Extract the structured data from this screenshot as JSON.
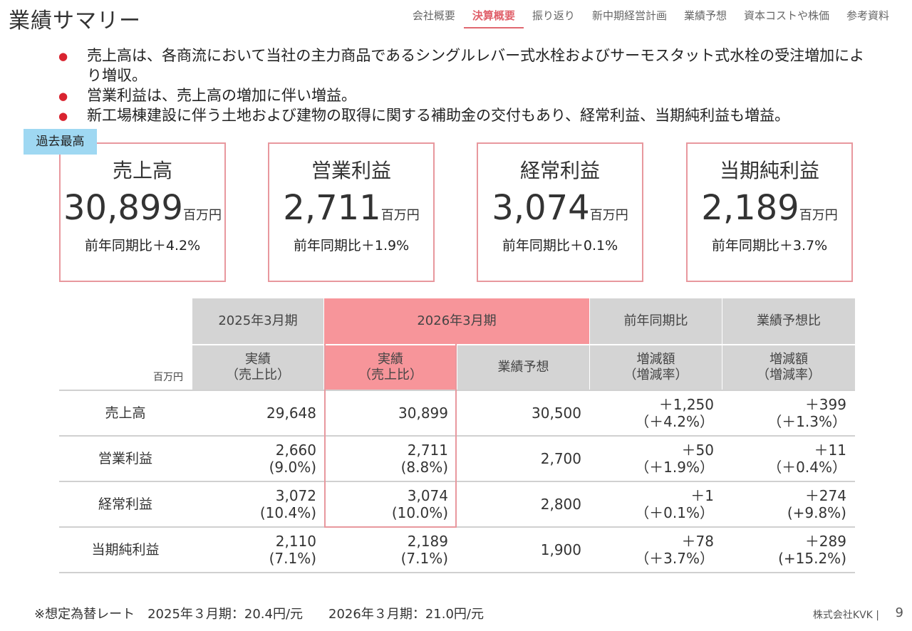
{
  "page": {
    "title": "業績サマリー"
  },
  "nav": {
    "tabs": [
      {
        "label": "会社概要"
      },
      {
        "label": "決算概要",
        "active": true
      },
      {
        "label": "振り返り"
      },
      {
        "label": "新中期経営計画"
      },
      {
        "label": "業績予想"
      },
      {
        "label": "資本コストや株価"
      },
      {
        "label": "参考資料"
      }
    ]
  },
  "bullets": [
    "売上高は、各商流において当社の主力商品であるシングルレバー式水栓およびサーモスタット式水栓の受注増加により増収。",
    "営業利益は、売上高の増加に伴い増益。",
    "新工場棟建設に伴う土地および建物の取得に関する補助金の交付もあり、経常利益、当期純利益も増益。"
  ],
  "record_tag": "過去最高",
  "cards": [
    {
      "label": "売上高",
      "value": "30,899",
      "unit": "百万円",
      "yoy": "前年同期比＋4.2%"
    },
    {
      "label": "営業利益",
      "value": "2,711",
      "unit": "百万円",
      "yoy": "前年同期比＋1.9%"
    },
    {
      "label": "経常利益",
      "value": "3,074",
      "unit": "百万円",
      "yoy": "前年同期比＋0.1%"
    },
    {
      "label": "当期純利益",
      "value": "2,189",
      "unit": "百万円",
      "yoy": "前年同期比＋3.7%"
    }
  ],
  "table": {
    "unit": "百万円",
    "group_headers": {
      "fy2025": "2025年3月期",
      "fy2026": "2026年3月期",
      "yoy": "前年同期比",
      "vs_forecast": "業績予想比"
    },
    "sub_headers": {
      "actual_2025": [
        "実績",
        "（売上比）"
      ],
      "actual_2026": [
        "実績",
        "（売上比）"
      ],
      "forecast": "業績予想",
      "yoy_change": [
        "増減額",
        "（増減率）"
      ],
      "fc_change": [
        "増減額",
        "（増減率）"
      ]
    },
    "rows": [
      {
        "label": "売上高",
        "fy2025": [
          "29,648",
          ""
        ],
        "fy2026": [
          "30,899",
          ""
        ],
        "forecast": "30,500",
        "yoy": [
          "＋1,250",
          "（＋4.2%）"
        ],
        "vs_fc": [
          "＋399",
          "（＋1.3%）"
        ]
      },
      {
        "label": "営業利益",
        "fy2025": [
          "2,660",
          "(9.0%)"
        ],
        "fy2026": [
          "2,711",
          "(8.8%)"
        ],
        "forecast": "2,700",
        "yoy": [
          "＋50",
          "（＋1.9%）"
        ],
        "vs_fc": [
          "＋11",
          "（＋0.4%）"
        ]
      },
      {
        "label": "経常利益",
        "fy2025": [
          "3,072",
          "(10.4%)"
        ],
        "fy2026": [
          "3,074",
          "(10.0%)"
        ],
        "forecast": "2,800",
        "yoy": [
          "＋1",
          "（＋0.1%）"
        ],
        "vs_fc": [
          "＋274",
          "(+9.8%)"
        ]
      },
      {
        "label": "当期純利益",
        "fy2025": [
          "2,110",
          "(7.1%)"
        ],
        "fy2026": [
          "2,189",
          "(7.1%)"
        ],
        "forecast": "1,900",
        "yoy": [
          "＋78",
          "（＋3.7%）"
        ],
        "vs_fc": [
          "＋289",
          "(+15.2%)"
        ]
      }
    ]
  },
  "footnote": "※想定為替レート　2025年３月期：20.4円/元　　2026年３月期：21.0円/元",
  "footer": {
    "company": "株式会社KVK |",
    "page_number": "9"
  }
}
